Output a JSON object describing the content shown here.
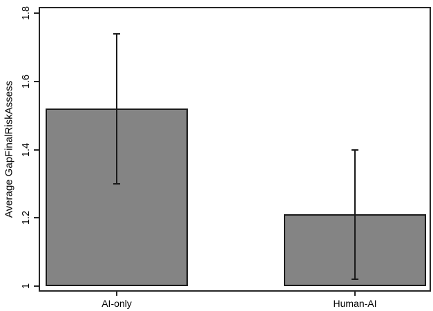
{
  "figure": {
    "background": "#ffffff",
    "frame_color": "#262626",
    "bar_fill": "#848484",
    "bar_border": "#1a1a1a",
    "error_color": "#1a1a1a"
  },
  "chart_data": {
    "type": "bar",
    "title": "",
    "xlabel": "",
    "ylabel": "Average GapFinalRiskAssess",
    "categories": [
      "AI-only",
      "Human-AI"
    ],
    "series": [
      {
        "name": "Average GapFinalRiskAssess",
        "values": [
          1.52,
          1.21
        ],
        "error_low": [
          1.3,
          1.02
        ],
        "error_high": [
          1.74,
          1.4
        ]
      }
    ],
    "ylim": [
      1.0,
      1.8
    ],
    "yticks": [
      1.0,
      1.2,
      1.4,
      1.6,
      1.8
    ],
    "ytick_labels": [
      "1",
      "1.2",
      "1.4",
      "1.6",
      "1.8"
    ],
    "grid": false,
    "legend_position": "none",
    "error_bars": true
  }
}
